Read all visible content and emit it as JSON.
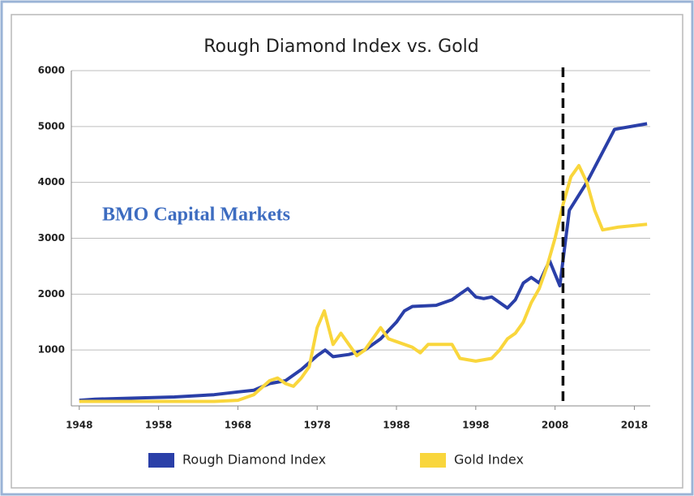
{
  "chart_data": {
    "type": "line",
    "title": "Rough Diamond Index vs. Gold",
    "annotation": "BMO Capital Markets",
    "vline": 2009,
    "xlim": [
      1947,
      2020
    ],
    "xticks": [
      1948,
      1958,
      1968,
      1978,
      1988,
      1998,
      2008,
      2018
    ],
    "ylim": [
      0,
      6000
    ],
    "yticks": [
      1000,
      2000,
      3000,
      4000,
      5000,
      6000
    ],
    "grid": true,
    "series": [
      {
        "name": "Rough Diamond Index",
        "color": "#2a3fa8",
        "x": [
          1948,
          1950,
          1955,
          1960,
          1965,
          1968,
          1970,
          1972,
          1974,
          1976,
          1978,
          1979,
          1980,
          1982,
          1984,
          1986,
          1988,
          1989,
          1990,
          1993,
          1995,
          1996,
          1997,
          1998,
          1999,
          2000,
          2002,
          2003,
          2004,
          2005,
          2006,
          2007.3,
          2008.6,
          2009.8,
          2012,
          2015.5,
          2019.6
        ],
        "values": [
          100,
          120,
          140,
          160,
          200,
          250,
          280,
          400,
          450,
          650,
          900,
          1000,
          880,
          920,
          1000,
          1200,
          1500,
          1700,
          1780,
          1800,
          1900,
          2000,
          2100,
          1950,
          1920,
          1950,
          1750,
          1900,
          2200,
          2300,
          2200,
          2600,
          2150,
          3500,
          4000,
          4950,
          5050
        ]
      },
      {
        "name": "Gold Index",
        "color": "#f9d63c",
        "x": [
          1948,
          1965,
          1968,
          1970,
          1972,
          1973,
          1974,
          1975,
          1976,
          1977,
          1978,
          1978.9,
          1980,
          1981,
          1982,
          1983,
          1984,
          1986,
          1987,
          1988,
          1990,
          1991,
          1992,
          1995,
          1996,
          1998,
          2000,
          2001,
          2002,
          2003,
          2004,
          2005,
          2006,
          2007,
          2008,
          2009,
          2010,
          2011,
          2012,
          2013,
          2014,
          2016,
          2019.6
        ],
        "values": [
          80,
          80,
          100,
          200,
          450,
          500,
          400,
          350,
          500,
          700,
          1400,
          1700,
          1100,
          1300,
          1100,
          900,
          1000,
          1400,
          1200,
          1150,
          1050,
          950,
          1100,
          1100,
          850,
          800,
          850,
          1000,
          1200,
          1300,
          1500,
          1850,
          2100,
          2500,
          3000,
          3600,
          4100,
          4300,
          4000,
          3500,
          3150,
          3200,
          3250
        ]
      }
    ]
  }
}
